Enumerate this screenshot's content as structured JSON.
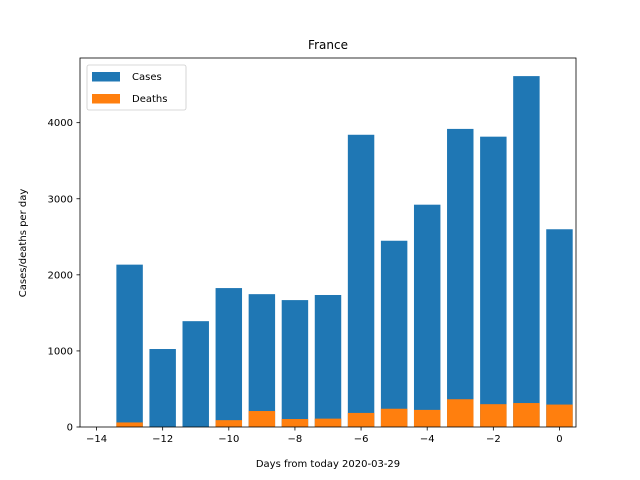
{
  "chart_data": {
    "type": "bar",
    "title": "France",
    "xlabel": "Days from today 2020-03-29",
    "ylabel": "Cases/deaths per day",
    "x": [
      -13,
      -12,
      -11,
      -10,
      -9,
      -8,
      -7,
      -6,
      -5,
      -4,
      -3,
      -2,
      -1,
      0
    ],
    "series": [
      {
        "name": "Cases",
        "color": "#1f77b4",
        "values": [
          2134,
          1025,
          1391,
          1826,
          1746,
          1668,
          1735,
          3841,
          2448,
          2922,
          3918,
          3816,
          4612,
          2599
        ]
      },
      {
        "name": "Deaths",
        "color": "#ff7f0e",
        "values": [
          60,
          0,
          0,
          90,
          210,
          105,
          110,
          185,
          240,
          225,
          365,
          300,
          315,
          295
        ]
      }
    ],
    "xlim": [
      -14.5,
      0.5
    ],
    "ylim": [
      0,
      4850
    ],
    "xticks": [
      -14,
      -12,
      -10,
      -8,
      -6,
      -4,
      -2,
      0
    ],
    "xtick_labels": [
      "−14",
      "−12",
      "−10",
      "−8",
      "−6",
      "−4",
      "−2",
      "0"
    ],
    "yticks": [
      0,
      1000,
      2000,
      3000,
      4000
    ],
    "ytick_labels": [
      "0",
      "1000",
      "2000",
      "3000",
      "4000"
    ],
    "legend": "top-left",
    "grid": false
  }
}
